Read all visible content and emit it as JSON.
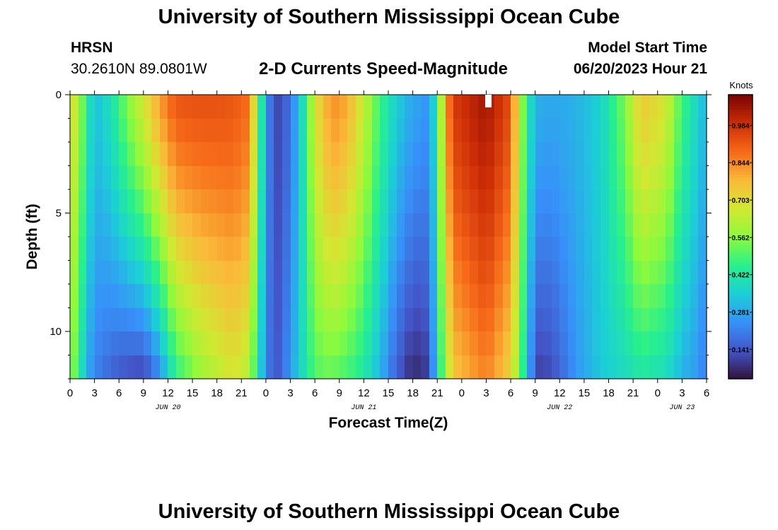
{
  "header": {
    "title": "University of Southern Mississippi Ocean Cube",
    "station": "HRSN",
    "coords": "30.2610N  89.0801W",
    "subtitle": "2-D Currents Speed-Magnitude",
    "model_start_label": "Model Start Time",
    "model_start_value": "06/20/2023 Hour 21"
  },
  "footer": {
    "title": "University of Southern Mississippi Ocean Cube"
  },
  "chart_data": {
    "type": "heatmap",
    "title": "2-D Currents Speed-Magnitude",
    "xlabel": "Forecast Time(Z)",
    "ylabel": "Depth (ft)",
    "x_hours_range": [
      0,
      78
    ],
    "y_depth_range": [
      0,
      12
    ],
    "x_tick_labels": [
      "0",
      "3",
      "6",
      "9",
      "12",
      "15",
      "18",
      "21",
      "0",
      "3",
      "6",
      "9",
      "12",
      "15",
      "18",
      "21",
      "0",
      "3",
      "6",
      "9",
      "12",
      "15",
      "18",
      "21",
      "0",
      "3",
      "6"
    ],
    "y_tick_labels": [
      "0",
      "5",
      "10"
    ],
    "y_tick_values": [
      0,
      5,
      10
    ],
    "date_labels": [
      {
        "text": "JUN 20",
        "hour": 12
      },
      {
        "text": "JUN 21",
        "hour": 36
      },
      {
        "text": "JUN 22",
        "hour": 60
      },
      {
        "text": "JUN 23",
        "hour": 75
      }
    ],
    "colorbar": {
      "unit": "Knots",
      "ticks": [
        "0.984",
        "0.844",
        "0.703",
        "0.562",
        "0.422",
        "0.281",
        "0.141"
      ],
      "tick_values": [
        0.984,
        0.844,
        0.703,
        0.562,
        0.422,
        0.281,
        0.141
      ],
      "range": [
        0.03,
        1.1
      ]
    },
    "depth_levels": 12,
    "hour_step": 1,
    "profile_keys": [
      {
        "hour": 0,
        "top": 0.7,
        "bottom": 0.6
      },
      {
        "hour": 1,
        "top": 0.62,
        "bottom": 0.45
      },
      {
        "hour": 2,
        "top": 0.45,
        "bottom": 0.3
      },
      {
        "hour": 3,
        "top": 0.32,
        "bottom": 0.22
      },
      {
        "hour": 5,
        "top": 0.4,
        "bottom": 0.16
      },
      {
        "hour": 7,
        "top": 0.55,
        "bottom": 0.12
      },
      {
        "hour": 9,
        "top": 0.68,
        "bottom": 0.1
      },
      {
        "hour": 11,
        "top": 0.82,
        "bottom": 0.22
      },
      {
        "hour": 13,
        "top": 0.92,
        "bottom": 0.45
      },
      {
        "hour": 16,
        "top": 0.93,
        "bottom": 0.58
      },
      {
        "hour": 20,
        "top": 0.92,
        "bottom": 0.68
      },
      {
        "hour": 22,
        "top": 0.88,
        "bottom": 0.62
      },
      {
        "hour": 23,
        "top": 0.55,
        "bottom": 0.4
      },
      {
        "hour": 24,
        "top": 0.28,
        "bottom": 0.25
      },
      {
        "hour": 25,
        "top": 0.12,
        "bottom": 0.12
      },
      {
        "hour": 26,
        "top": 0.12,
        "bottom": 0.18
      },
      {
        "hour": 28,
        "top": 0.3,
        "bottom": 0.35
      },
      {
        "hour": 30,
        "top": 0.68,
        "bottom": 0.5
      },
      {
        "hour": 32,
        "top": 0.84,
        "bottom": 0.52
      },
      {
        "hour": 34,
        "top": 0.8,
        "bottom": 0.48
      },
      {
        "hour": 36,
        "top": 0.65,
        "bottom": 0.42
      },
      {
        "hour": 38,
        "top": 0.48,
        "bottom": 0.3
      },
      {
        "hour": 40,
        "top": 0.35,
        "bottom": 0.15
      },
      {
        "hour": 42,
        "top": 0.28,
        "bottom": 0.06
      },
      {
        "hour": 44,
        "top": 0.25,
        "bottom": 0.1
      },
      {
        "hour": 45,
        "top": 0.45,
        "bottom": 0.38
      },
      {
        "hour": 46,
        "top": 0.8,
        "bottom": 0.58
      },
      {
        "hour": 47,
        "top": 0.97,
        "bottom": 0.75
      },
      {
        "hour": 51,
        "top": 1.05,
        "bottom": 0.85
      },
      {
        "hour": 54,
        "top": 0.93,
        "bottom": 0.72
      },
      {
        "hour": 55,
        "top": 0.65,
        "bottom": 0.55
      },
      {
        "hour": 56,
        "top": 0.45,
        "bottom": 0.35
      },
      {
        "hour": 57,
        "top": 0.3,
        "bottom": 0.1
      },
      {
        "hour": 59,
        "top": 0.28,
        "bottom": 0.12
      },
      {
        "hour": 62,
        "top": 0.3,
        "bottom": 0.25
      },
      {
        "hour": 65,
        "top": 0.36,
        "bottom": 0.34
      },
      {
        "hour": 68,
        "top": 0.55,
        "bottom": 0.38
      },
      {
        "hour": 70,
        "top": 0.75,
        "bottom": 0.42
      },
      {
        "hour": 73,
        "top": 0.68,
        "bottom": 0.38
      },
      {
        "hour": 75,
        "top": 0.48,
        "bottom": 0.3
      },
      {
        "hour": 77,
        "top": 0.36,
        "bottom": 0.25
      },
      {
        "hour": 78,
        "top": 0.3,
        "bottom": 0.2
      }
    ]
  }
}
